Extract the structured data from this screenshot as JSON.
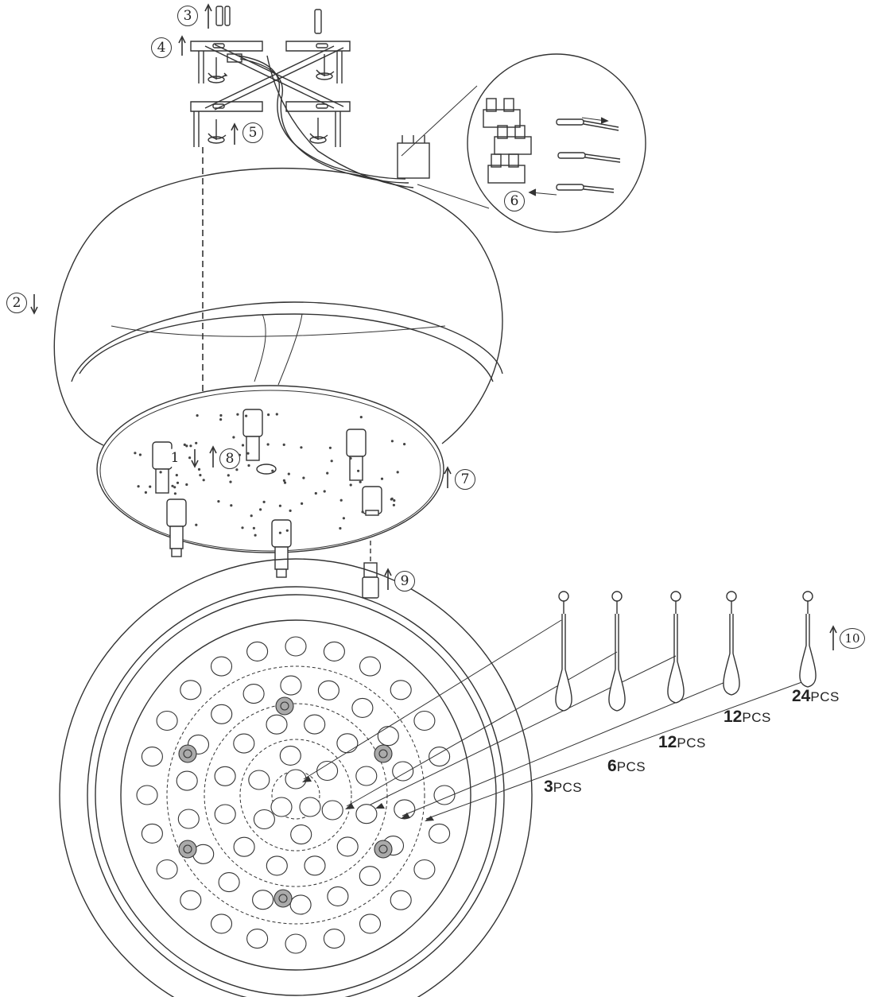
{
  "steps": [
    "1",
    "2",
    "3",
    "4",
    "5",
    "6",
    "7",
    "8",
    "9",
    "10"
  ],
  "drops": [
    {
      "count": "3",
      "unit": "PCS"
    },
    {
      "count": "6",
      "unit": "PCS"
    },
    {
      "count": "12",
      "unit": "PCS"
    },
    {
      "count": "12",
      "unit": "PCS"
    },
    {
      "count": "24",
      "unit": "PCS"
    }
  ]
}
